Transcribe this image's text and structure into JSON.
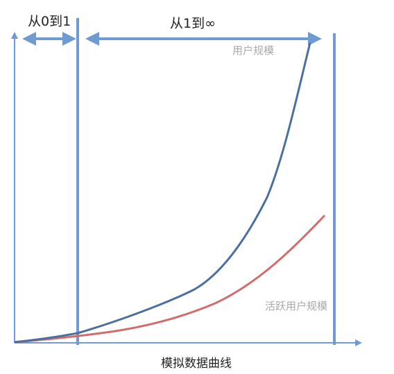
{
  "annotations": {
    "zero_to_one": "从0到1",
    "one_to_infinity": "从1到∞"
  },
  "curves": {
    "user_scale": {
      "label": "用户规模",
      "color": "#4a6fa0"
    },
    "active_user_scale": {
      "label": "活跃用户规模",
      "color": "#d46a6a"
    }
  },
  "caption": "模拟数据曲线",
  "colors": {
    "axis": "#6f9bd1",
    "divider": "#6f9bd1",
    "arrow": "#6f9bd1"
  },
  "icons": [
    "arrow-up-icon",
    "arrow-right-icon",
    "double-arrow-icon"
  ]
}
